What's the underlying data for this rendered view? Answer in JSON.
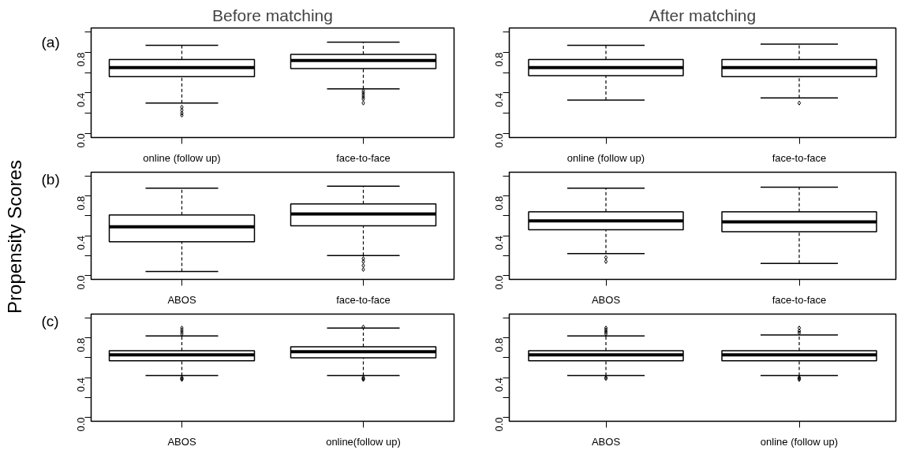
{
  "chart_data": [
    {
      "type": "box",
      "title": "Before matching",
      "annotations": [
        "(a)"
      ],
      "categories": [
        "online (follow up)",
        "face-to-face"
      ],
      "ylim": [
        -0.04,
        1.04
      ],
      "yticks": [
        {
          "value": 0,
          "label": "0.0"
        },
        {
          "value": 0.2,
          "label": null
        },
        {
          "value": 0.4,
          "label": "0.4"
        },
        {
          "value": 0.6,
          "label": null
        },
        {
          "value": 0.8,
          "label": "0.8"
        },
        {
          "value": 1.0,
          "label": null
        }
      ],
      "boxes": [
        {
          "low": 0.3,
          "q1": 0.56,
          "median": 0.65,
          "q3": 0.73,
          "high": 0.87,
          "outliers": [
            0.26,
            0.23,
            0.2,
            0.18
          ]
        },
        {
          "low": 0.44,
          "q1": 0.64,
          "median": 0.72,
          "q3": 0.78,
          "high": 0.9,
          "outliers": [
            0.42,
            0.4,
            0.38,
            0.36,
            0.34,
            0.3
          ]
        }
      ]
    },
    {
      "type": "box",
      "title": "After matching",
      "categories": [
        "online (follow up)",
        "face-to-face"
      ],
      "ylim": [
        -0.04,
        1.04
      ],
      "yticks": [
        {
          "value": 0,
          "label": "0.0"
        },
        {
          "value": 0.2,
          "label": null
        },
        {
          "value": 0.4,
          "label": "0.4"
        },
        {
          "value": 0.6,
          "label": null
        },
        {
          "value": 0.8,
          "label": "0.8"
        },
        {
          "value": 1.0,
          "label": null
        }
      ],
      "boxes": [
        {
          "low": 0.33,
          "q1": 0.57,
          "median": 0.65,
          "q3": 0.73,
          "high": 0.87
        },
        {
          "low": 0.35,
          "q1": 0.56,
          "median": 0.65,
          "q3": 0.73,
          "high": 0.88,
          "outliers": [
            0.3
          ]
        }
      ]
    },
    {
      "type": "box",
      "ylabel": "Propensity Scores",
      "annotations": [
        "(b)"
      ],
      "categories": [
        "ABOS",
        "face-to-face"
      ],
      "ylim": [
        -0.04,
        1.04
      ],
      "yticks": [
        {
          "value": 0,
          "label": "0.0"
        },
        {
          "value": 0.2,
          "label": null
        },
        {
          "value": 0.4,
          "label": "0.4"
        },
        {
          "value": 0.6,
          "label": null
        },
        {
          "value": 0.8,
          "label": "0.8"
        },
        {
          "value": 1.0,
          "label": null
        }
      ],
      "boxes": [
        {
          "low": 0.04,
          "q1": 0.34,
          "median": 0.49,
          "q3": 0.61,
          "high": 0.88
        },
        {
          "low": 0.2,
          "q1": 0.5,
          "median": 0.62,
          "q3": 0.72,
          "high": 0.9,
          "outliers": [
            0.17,
            0.14,
            0.1,
            0.06
          ]
        }
      ]
    },
    {
      "type": "box",
      "categories": [
        "ABOS",
        "face-to-face"
      ],
      "ylim": [
        -0.04,
        1.04
      ],
      "yticks": [
        {
          "value": 0,
          "label": "0.0"
        },
        {
          "value": 0.2,
          "label": null
        },
        {
          "value": 0.4,
          "label": "0.4"
        },
        {
          "value": 0.6,
          "label": null
        },
        {
          "value": 0.8,
          "label": "0.8"
        },
        {
          "value": 1.0,
          "label": null
        }
      ],
      "boxes": [
        {
          "low": 0.22,
          "q1": 0.46,
          "median": 0.55,
          "q3": 0.64,
          "high": 0.88,
          "outliers": [
            0.18,
            0.14
          ]
        },
        {
          "low": 0.12,
          "q1": 0.44,
          "median": 0.54,
          "q3": 0.64,
          "high": 0.89
        }
      ]
    },
    {
      "type": "box",
      "annotations": [
        "(c)"
      ],
      "categories": [
        "ABOS",
        "online(follow up)"
      ],
      "ylim": [
        -0.04,
        1.04
      ],
      "yticks": [
        {
          "value": 0,
          "label": "0.0"
        },
        {
          "value": 0.2,
          "label": null
        },
        {
          "value": 0.4,
          "label": "0.4"
        },
        {
          "value": 0.6,
          "label": null
        },
        {
          "value": 0.8,
          "label": "0.8"
        },
        {
          "value": 1.0,
          "label": null
        }
      ],
      "boxes": [
        {
          "low": 0.42,
          "q1": 0.57,
          "median": 0.63,
          "q3": 0.67,
          "high": 0.82,
          "outliers": [
            0.38,
            0.39,
            0.4,
            0.84,
            0.86,
            0.88,
            0.9
          ]
        },
        {
          "low": 0.42,
          "q1": 0.6,
          "median": 0.66,
          "q3": 0.71,
          "high": 0.9,
          "outliers": [
            0.38,
            0.39,
            0.4,
            0.91
          ]
        }
      ]
    },
    {
      "type": "box",
      "categories": [
        "ABOS",
        "online (follow up)"
      ],
      "ylim": [
        -0.04,
        1.04
      ],
      "yticks": [
        {
          "value": 0,
          "label": "0.0"
        },
        {
          "value": 0.2,
          "label": null
        },
        {
          "value": 0.4,
          "label": "0.4"
        },
        {
          "value": 0.6,
          "label": null
        },
        {
          "value": 0.8,
          "label": "0.8"
        },
        {
          "value": 1.0,
          "label": null
        }
      ],
      "boxes": [
        {
          "low": 0.42,
          "q1": 0.57,
          "median": 0.63,
          "q3": 0.67,
          "high": 0.82,
          "outliers": [
            0.39,
            0.4,
            0.84,
            0.86,
            0.88,
            0.9
          ]
        },
        {
          "low": 0.42,
          "q1": 0.57,
          "median": 0.63,
          "q3": 0.67,
          "high": 0.83,
          "outliers": [
            0.38,
            0.39,
            0.4,
            0.85,
            0.87,
            0.9
          ]
        }
      ]
    }
  ]
}
